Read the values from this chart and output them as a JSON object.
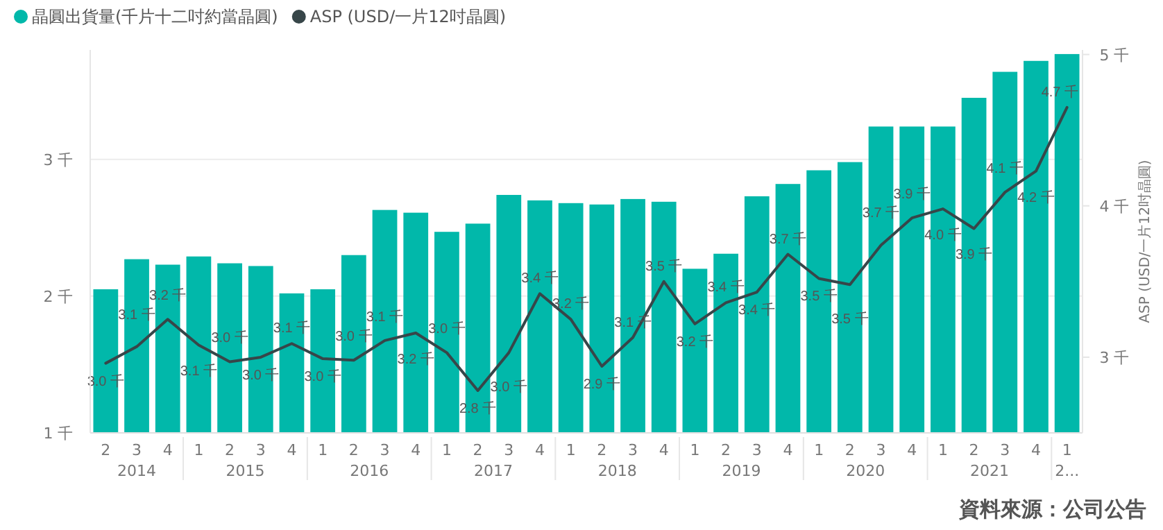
{
  "chart_data": {
    "type": "bar",
    "categories": [
      "2",
      "3",
      "4",
      "1",
      "2",
      "3",
      "4",
      "1",
      "2",
      "3",
      "4",
      "1",
      "2",
      "3",
      "4",
      "1",
      "2",
      "3",
      "4",
      "1",
      "2",
      "3",
      "4",
      "1",
      "2",
      "3",
      "4",
      "1",
      "2",
      "3",
      "4",
      "1"
    ],
    "series": [
      {
        "name": "晶圓出貨量(千片十二吋約當晶圓)",
        "color": "#01b8aa",
        "values": [
          2.05,
          2.27,
          2.23,
          2.29,
          2.24,
          2.22,
          2.02,
          2.05,
          2.3,
          2.63,
          2.61,
          2.47,
          2.53,
          2.74,
          2.7,
          2.68,
          2.67,
          2.71,
          2.69,
          2.2,
          2.31,
          2.73,
          2.82,
          2.92,
          2.98,
          3.24,
          3.24,
          3.24,
          3.45,
          3.64,
          3.72,
          3.77
        ]
      },
      {
        "name": "ASP (USD/一片12吋晶圓)",
        "type": "line",
        "axis": "y2",
        "color": "#374649",
        "values": [
          2.96,
          3.07,
          3.25,
          3.08,
          2.97,
          3.0,
          3.09,
          2.99,
          2.98,
          3.11,
          3.16,
          3.03,
          2.78,
          3.03,
          3.42,
          3.25,
          2.94,
          3.13,
          3.5,
          3.22,
          3.36,
          3.43,
          3.68,
          3.52,
          3.48,
          3.74,
          3.92,
          3.98,
          3.85,
          4.09,
          4.23,
          4.65
        ],
        "value_labels": [
          "3.0 千",
          "3.1 千",
          "3.2 千",
          "3.1 千",
          "3.0 千",
          "3.0 千",
          "3.1 千",
          "3.0 千",
          "3.0 千",
          "3.1 千",
          "3.2 千",
          "3.0 千",
          "2.8 千",
          "3.0 千",
          "3.4 千",
          "3.2 千",
          "2.9 千",
          "3.1 千",
          "3.5 千",
          "3.2 千",
          "3.4 千",
          "3.4 千",
          "3.7 千",
          "3.5 千",
          "3.5 千",
          "3.7 千",
          "3.9 千",
          "4.0 千",
          "3.9 千",
          "4.1 千",
          "4.2 千",
          "4.7 千"
        ]
      }
    ],
    "ylim": [
      1,
      3.8
    ],
    "yticks": [
      {
        "value": 1,
        "label": "1 千"
      },
      {
        "value": 2,
        "label": "2 千"
      },
      {
        "value": 3,
        "label": "3 千"
      }
    ],
    "y2lim": [
      2.5,
      5.03
    ],
    "y2ticks": [
      {
        "value": 3,
        "label": "3 千"
      },
      {
        "value": 4,
        "label": "4 千"
      },
      {
        "value": 5,
        "label": "5 千"
      }
    ],
    "y2label": "ASP (USD/一片12吋晶圓)",
    "grid": "y",
    "legend": "top left",
    "annotations": [
      "資料來源：公司公告",
      "2014",
      "2015",
      "2016",
      "2017",
      "2018",
      "2019",
      "2020",
      "2021",
      "2..."
    ]
  }
}
